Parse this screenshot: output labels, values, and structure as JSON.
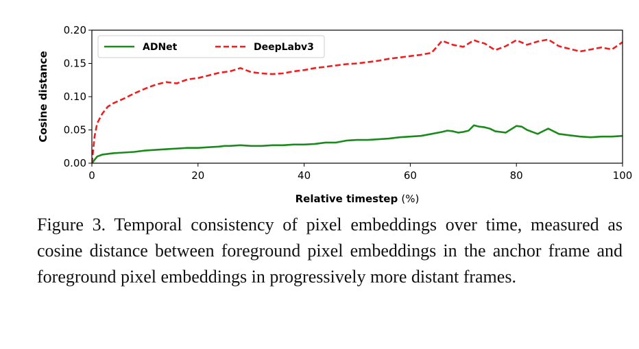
{
  "chart_data": {
    "type": "line",
    "xlabel": "Relative timestep",
    "xlabel_unit": "(%)",
    "ylabel": "Cosine distance",
    "xlim": [
      0,
      100
    ],
    "ylim": [
      0,
      0.2
    ],
    "xticks": [
      0,
      20,
      40,
      60,
      80,
      100
    ],
    "xtick_labels": [
      "0",
      "20",
      "40",
      "60",
      "80",
      "100"
    ],
    "yticks": [
      0,
      0.05,
      0.1,
      0.15,
      0.2
    ],
    "ytick_labels": [
      "0.00",
      "0.05",
      "0.10",
      "0.15",
      "0.20"
    ],
    "grid": false,
    "legend_position": "upper-left",
    "series": [
      {
        "name": "ADNet",
        "color": "#1a8a1a",
        "style": "solid",
        "x": [
          0,
          1,
          2,
          4,
          6,
          8,
          10,
          12,
          14,
          16,
          18,
          20,
          22,
          24,
          25,
          26,
          28,
          30,
          32,
          34,
          36,
          38,
          40,
          42,
          44,
          46,
          48,
          50,
          52,
          54,
          56,
          58,
          60,
          62,
          64,
          66,
          67,
          68,
          69,
          70,
          71,
          72,
          73,
          74,
          75,
          76,
          78,
          80,
          81,
          82,
          84,
          85,
          86,
          87,
          88,
          90,
          92,
          94,
          96,
          98,
          100
        ],
        "values": [
          0.0,
          0.01,
          0.013,
          0.015,
          0.016,
          0.017,
          0.019,
          0.02,
          0.021,
          0.022,
          0.023,
          0.023,
          0.024,
          0.025,
          0.026,
          0.026,
          0.027,
          0.026,
          0.026,
          0.027,
          0.027,
          0.028,
          0.028,
          0.029,
          0.031,
          0.031,
          0.034,
          0.035,
          0.035,
          0.036,
          0.037,
          0.039,
          0.04,
          0.041,
          0.044,
          0.047,
          0.049,
          0.048,
          0.046,
          0.047,
          0.049,
          0.057,
          0.055,
          0.054,
          0.052,
          0.048,
          0.046,
          0.056,
          0.055,
          0.05,
          0.044,
          0.048,
          0.052,
          0.048,
          0.044,
          0.042,
          0.04,
          0.039,
          0.04,
          0.04,
          0.041
        ]
      },
      {
        "name": "DeepLabv3",
        "color": "#f01e1e",
        "style": "dashed",
        "x": [
          0,
          0.5,
          1,
          2,
          3,
          4,
          6,
          8,
          10,
          12,
          14,
          16,
          18,
          20,
          22,
          24,
          26,
          28,
          30,
          32,
          34,
          36,
          38,
          40,
          42,
          44,
          46,
          48,
          50,
          52,
          54,
          56,
          58,
          60,
          62,
          64,
          66,
          68,
          70,
          72,
          73,
          74,
          76,
          78,
          80,
          82,
          84,
          86,
          88,
          90,
          92,
          94,
          96,
          98,
          100
        ],
        "values": [
          0.0,
          0.04,
          0.06,
          0.075,
          0.085,
          0.09,
          0.097,
          0.105,
          0.112,
          0.118,
          0.122,
          0.12,
          0.126,
          0.128,
          0.132,
          0.136,
          0.138,
          0.143,
          0.137,
          0.135,
          0.134,
          0.135,
          0.138,
          0.14,
          0.143,
          0.145,
          0.147,
          0.149,
          0.15,
          0.152,
          0.154,
          0.157,
          0.159,
          0.161,
          0.163,
          0.166,
          0.184,
          0.178,
          0.175,
          0.185,
          0.182,
          0.18,
          0.17,
          0.176,
          0.185,
          0.178,
          0.183,
          0.186,
          0.176,
          0.172,
          0.168,
          0.171,
          0.174,
          0.171,
          0.182
        ]
      }
    ]
  },
  "caption": "Figure 3. Temporal consistency of pixel embeddings over time, measured as cosine distance between foreground pixel embeddings in the anchor frame and foreground pixel embeddings in progressively more distant frames."
}
